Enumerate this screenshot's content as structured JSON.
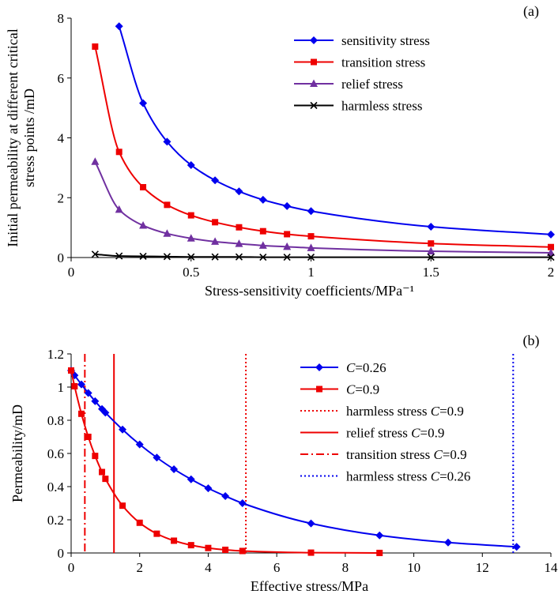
{
  "chart_data": [
    {
      "type": "line",
      "title": "(a)",
      "xlabel": "Stress-sensitivity coefficients/MPa⁻¹",
      "ylabel_lines": [
        "Initial permeability at different critical",
        "stress points /mD"
      ],
      "xlim": [
        0,
        2
      ],
      "ylim": [
        0,
        8
      ],
      "xticks": [
        0,
        0.5,
        1,
        1.5,
        2
      ],
      "xtick_labels": [
        "0",
        "0.5",
        "1",
        "1.5",
        "2"
      ],
      "yticks": [
        0,
        2,
        4,
        6,
        8
      ],
      "ytick_labels": [
        "0",
        "2",
        "4",
        "6",
        "8"
      ],
      "grid": false,
      "legend_position": "top-right",
      "series": [
        {
          "name": "sensitivity stress",
          "color": "#0000ee",
          "marker": "diamond",
          "x": [
            0.2,
            0.3,
            0.4,
            0.5,
            0.6,
            0.7,
            0.8,
            0.9,
            1.0,
            1.5,
            2.0
          ],
          "y": [
            7.73,
            5.16,
            3.87,
            3.09,
            2.58,
            2.21,
            1.93,
            1.72,
            1.55,
            1.03,
            0.77
          ]
        },
        {
          "name": "transition stress",
          "color": "#ee0000",
          "marker": "square",
          "x": [
            0.1,
            0.2,
            0.3,
            0.4,
            0.5,
            0.6,
            0.7,
            0.8,
            0.9,
            1.0,
            1.5,
            2.0
          ],
          "y": [
            7.05,
            3.53,
            2.35,
            1.76,
            1.41,
            1.18,
            1.01,
            0.88,
            0.78,
            0.71,
            0.47,
            0.35
          ]
        },
        {
          "name": "relief stress",
          "color": "#7030a0",
          "marker": "triangle",
          "x": [
            0.1,
            0.2,
            0.3,
            0.4,
            0.5,
            0.6,
            0.7,
            0.8,
            0.9,
            1.0,
            1.5,
            2.0
          ],
          "y": [
            3.2,
            1.6,
            1.07,
            0.8,
            0.64,
            0.53,
            0.46,
            0.4,
            0.36,
            0.32,
            0.21,
            0.16
          ]
        },
        {
          "name": "harmless stress",
          "color": "#000000",
          "marker": "x",
          "x": [
            0.1,
            0.2,
            0.3,
            0.4,
            0.5,
            0.6,
            0.7,
            0.8,
            0.9,
            1.0,
            1.5,
            2.0
          ],
          "y": [
            0.11,
            0.05,
            0.04,
            0.03,
            0.02,
            0.02,
            0.02,
            0.01,
            0.01,
            0.01,
            0.01,
            0.01
          ]
        }
      ]
    },
    {
      "type": "line",
      "title": "(b)",
      "xlabel": "Effective stress/MPa",
      "ylabel": "Permeability/mD",
      "xlim": [
        0,
        14
      ],
      "ylim": [
        0,
        1.2
      ],
      "xticks": [
        0,
        2,
        4,
        6,
        8,
        10,
        12,
        14
      ],
      "xtick_labels": [
        "0",
        "2",
        "4",
        "6",
        "8",
        "10",
        "12",
        "14"
      ],
      "yticks": [
        0,
        0.2,
        0.4,
        0.6,
        0.8,
        1,
        1.2
      ],
      "ytick_labels": [
        "0",
        "0.2",
        "0.4",
        "0.6",
        "0.8",
        "1",
        "1.2"
      ],
      "grid": false,
      "legend_position": "top-right",
      "series": [
        {
          "name": "C=0.26",
          "name_prefix": "C",
          "name_suffix": "=0.26",
          "color": "#0000ee",
          "marker": "diamond",
          "x": [
            0,
            0.1,
            0.3,
            0.5,
            0.7,
            0.9,
            1.0,
            1.5,
            2.0,
            2.5,
            3.0,
            3.5,
            4.0,
            4.5,
            5.0,
            7.0,
            9.0,
            11.0,
            13.0
          ],
          "y": [
            1.1,
            1.071,
            1.016,
            0.964,
            0.915,
            0.868,
            0.846,
            0.744,
            0.654,
            0.575,
            0.505,
            0.444,
            0.39,
            0.343,
            0.3,
            0.178,
            0.106,
            0.063,
            0.037
          ]
        },
        {
          "name": "C=0.9",
          "name_prefix": "C",
          "name_suffix": "=0.9",
          "color": "#ee0000",
          "marker": "square",
          "x": [
            0,
            0.1,
            0.3,
            0.5,
            0.7,
            0.9,
            1.0,
            1.5,
            2.0,
            2.5,
            3.0,
            3.5,
            4.0,
            4.5,
            5.0,
            7.0,
            9.0
          ],
          "y": [
            1.1,
            1.005,
            0.839,
            0.7,
            0.585,
            0.488,
            0.447,
            0.285,
            0.182,
            0.116,
            0.074,
            0.047,
            0.03,
            0.019,
            0.012,
            0.002,
            0.0003
          ]
        }
      ],
      "reference_lines": [
        {
          "label_prefix": "harmless stress  ",
          "label_var": "C",
          "label_suffix": "=0.9",
          "x": 5.1,
          "color": "#ee0000",
          "style": "dotted"
        },
        {
          "label_prefix": "relief stress  ",
          "label_var": "C",
          "label_suffix": "=0.9",
          "x": 1.25,
          "color": "#ee0000",
          "style": "solid"
        },
        {
          "label_prefix": "transition stress  ",
          "label_var": "C",
          "label_suffix": "=0.9",
          "x": 0.4,
          "color": "#ee0000",
          "style": "dashdot"
        },
        {
          "label_prefix": "harmless stress  ",
          "label_var": "C",
          "label_suffix": "=0.26",
          "x": 12.9,
          "color": "#0000ee",
          "style": "dotted"
        }
      ]
    }
  ]
}
